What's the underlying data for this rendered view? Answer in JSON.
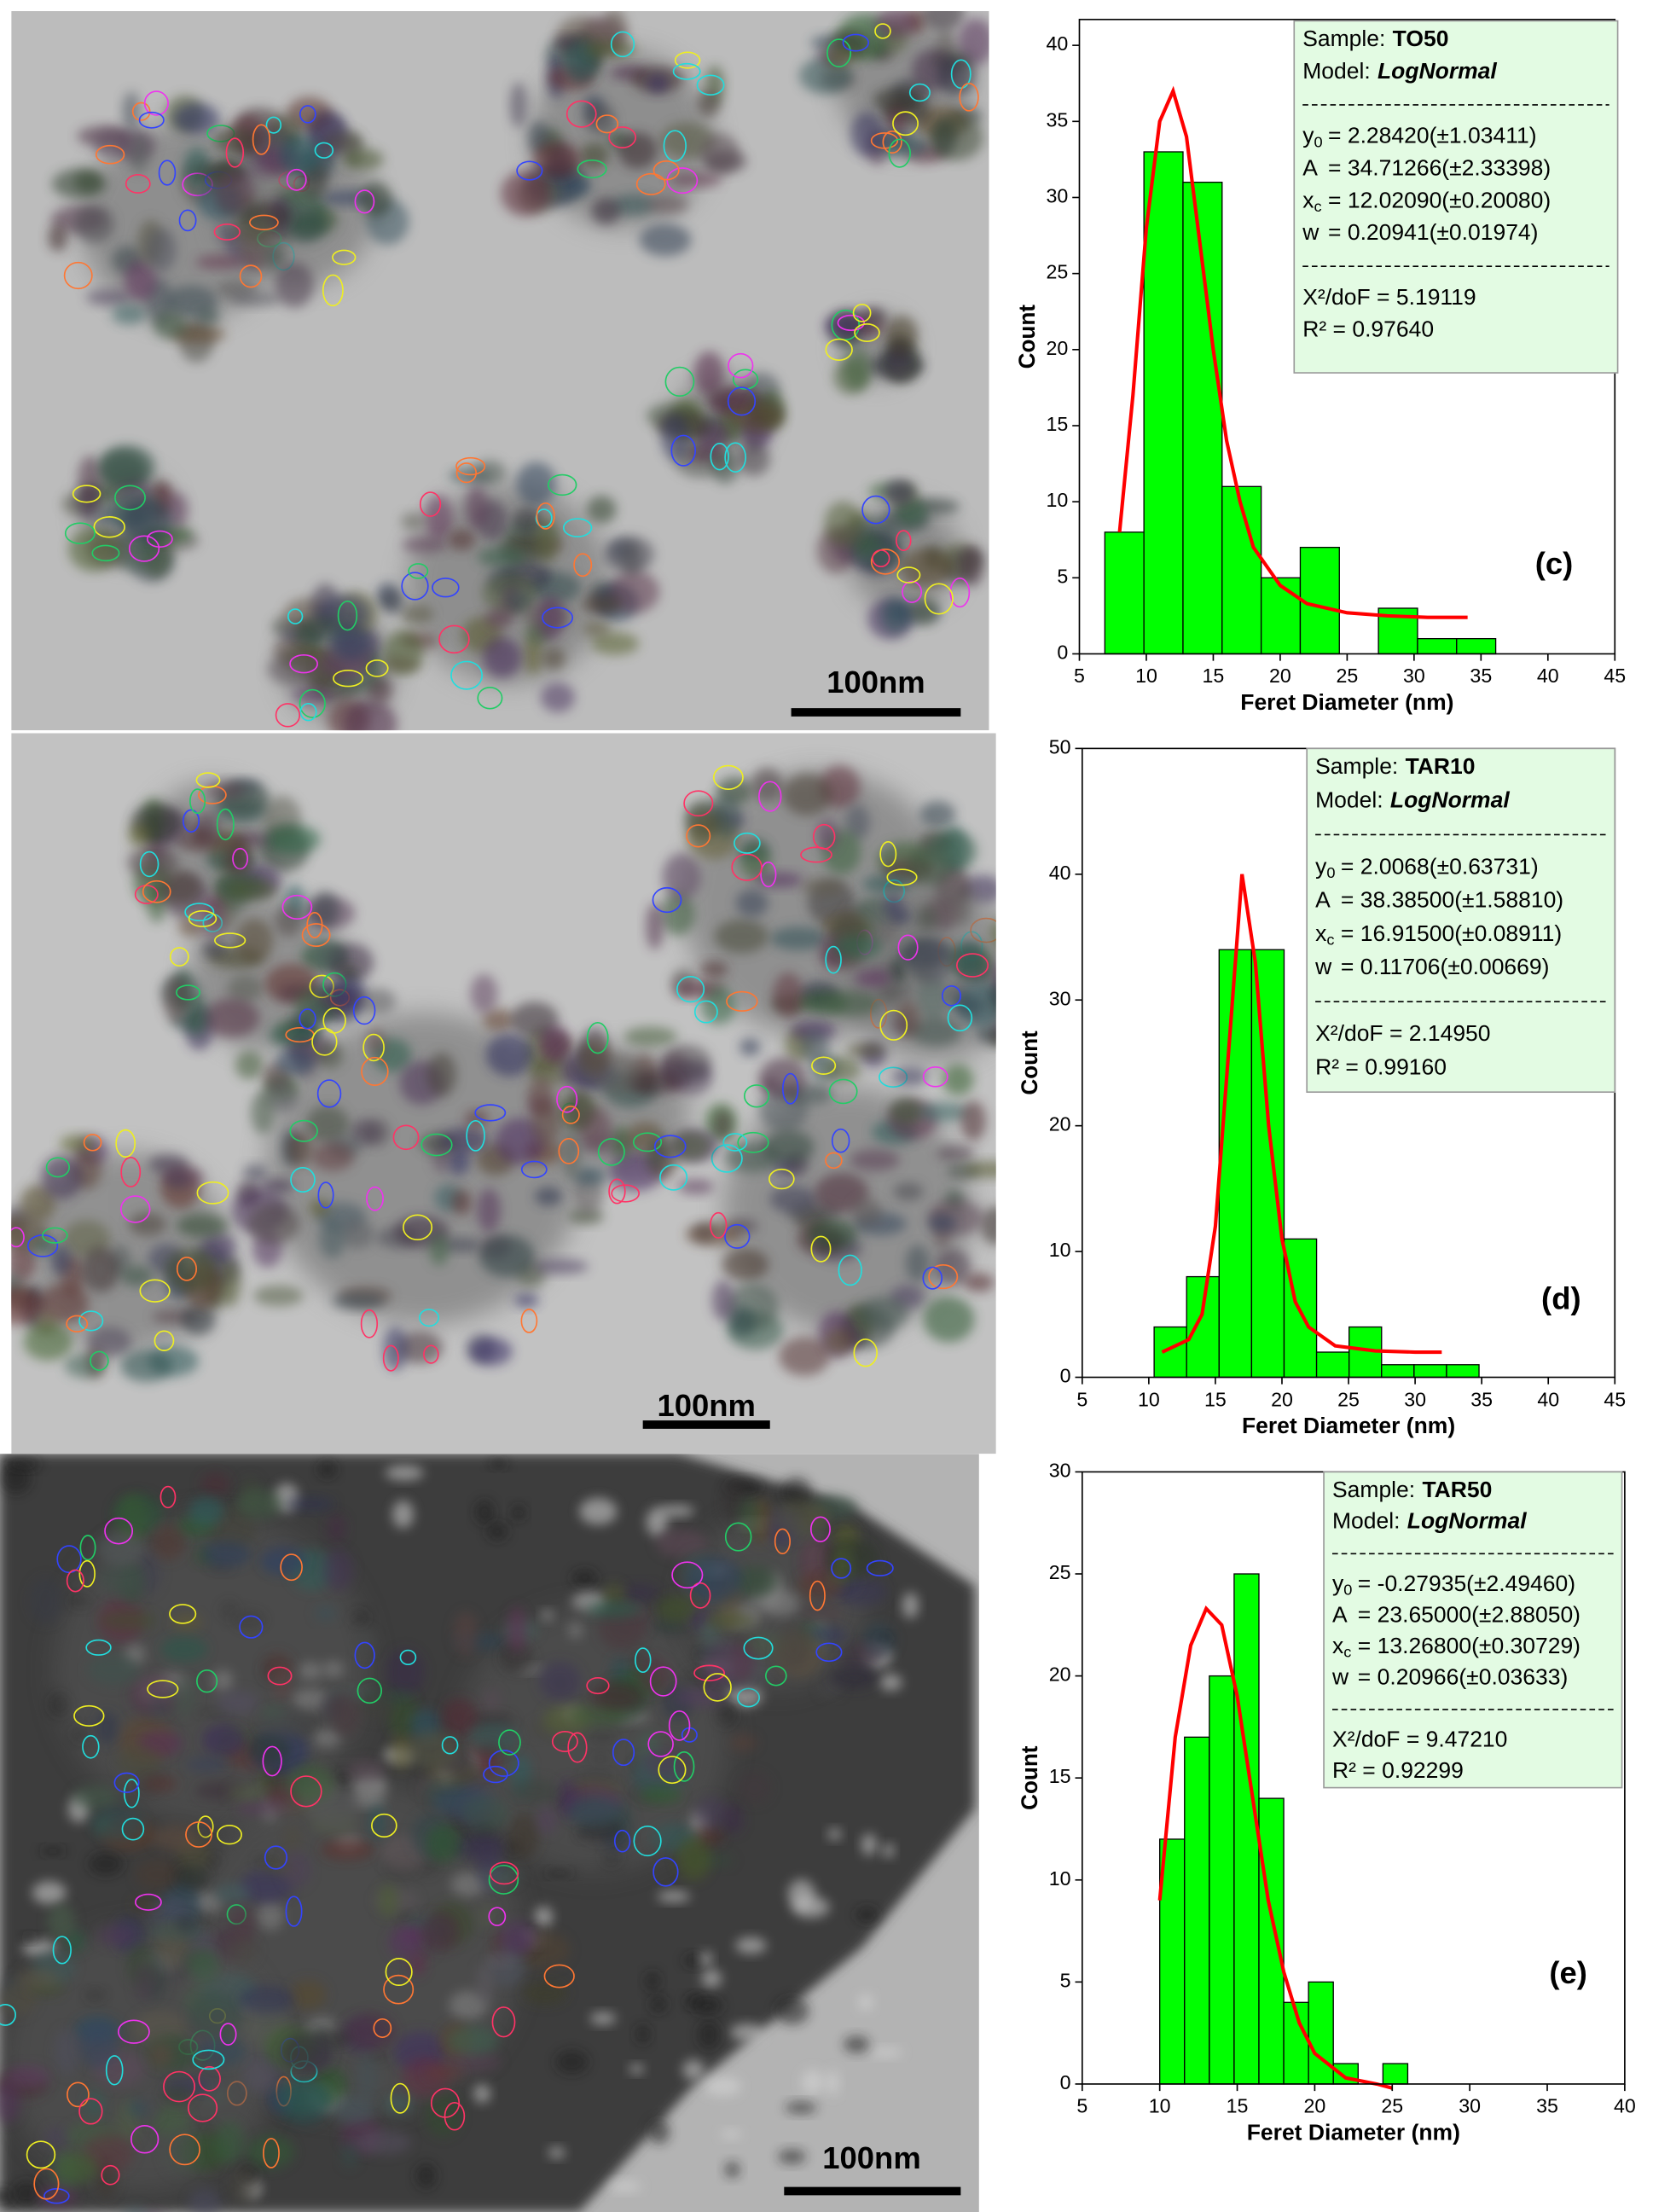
{
  "micrographs": [
    {
      "scale_bar": "100nm"
    },
    {
      "scale_bar": "100nm"
    },
    {
      "scale_bar": "100nm"
    }
  ],
  "chart_data": [
    {
      "type": "histogram",
      "panel_label": "(c)",
      "xlabel": "Feret Diameter (nm)",
      "ylabel": "Count",
      "bins": [
        6.9,
        9.82,
        12.74,
        15.66,
        18.58,
        21.5,
        24.42,
        27.34,
        30.26,
        33.18,
        36.1
      ],
      "values": [
        8,
        33,
        31,
        11,
        5,
        7,
        0,
        3,
        1,
        1
      ],
      "color": "#00ff00",
      "fit": {
        "x": [
          8,
          9,
          10,
          11,
          12,
          13,
          14,
          15,
          16,
          17,
          18,
          20,
          22,
          25,
          28,
          31,
          34
        ],
        "values": [
          8,
          17,
          28,
          35,
          37,
          34,
          27,
          20,
          14,
          10,
          7,
          4.5,
          3.3,
          2.7,
          2.5,
          2.4,
          2.4
        ],
        "color": "#ff0000"
      },
      "xlim": [
        5,
        45
      ],
      "xticks": [
        5,
        10,
        15,
        20,
        25,
        30,
        35,
        40,
        45
      ],
      "ylim": [
        0,
        41.7
      ],
      "yticks": [
        0,
        5,
        10,
        15,
        20,
        25,
        30,
        35,
        40
      ],
      "legend": {
        "sample_label": "Sample:",
        "sample": "TO50",
        "model_label": "Model:",
        "model": "LogNormal",
        "params": [
          {
            "name": "y",
            "sub": "0",
            "value": "= 2.28420(±1.03411)"
          },
          {
            "name": "A",
            "value": "= 34.71266(±2.33398)"
          },
          {
            "name": "x",
            "sub": "c",
            "value": "= 12.02090(±0.20080)"
          },
          {
            "name": "w",
            "value": "= 0.20941(±0.01974)"
          }
        ],
        "stats": [
          "X²/doF = 5.19119",
          "R² = 0.97640"
        ]
      }
    },
    {
      "type": "histogram",
      "panel_label": "(d)",
      "xlabel": "Feret Diameter (nm)",
      "ylabel": "Count",
      "bins": [
        10.4,
        12.84,
        15.28,
        17.72,
        20.16,
        22.6,
        25.04,
        27.48,
        29.92,
        32.36,
        34.8
      ],
      "values": [
        4,
        8,
        34,
        34,
        11,
        2,
        4,
        1,
        1,
        1
      ],
      "color": "#00ff00",
      "fit": {
        "x": [
          11,
          13,
          14,
          15,
          16,
          17,
          18,
          19,
          20,
          21,
          22,
          24,
          27,
          30,
          32
        ],
        "values": [
          2,
          3,
          5,
          12,
          26,
          40,
          33,
          20,
          11,
          6,
          4,
          2.5,
          2.1,
          2,
          2
        ],
        "color": "#ff0000"
      },
      "xlim": [
        5,
        45
      ],
      "xticks": [
        5,
        10,
        15,
        20,
        25,
        30,
        35,
        40,
        45
      ],
      "ylim": [
        0,
        50
      ],
      "yticks": [
        0,
        10,
        20,
        30,
        40,
        50
      ],
      "legend": {
        "sample_label": "Sample:",
        "sample": "TAR10",
        "model_label": "Model:",
        "model": "LogNormal",
        "params": [
          {
            "name": "y",
            "sub": "0",
            "value": "= 2.0068(±0.63731)"
          },
          {
            "name": "A",
            "value": "= 38.38500(±1.58810)"
          },
          {
            "name": "x",
            "sub": "c",
            "value": "= 16.91500(±0.08911)"
          },
          {
            "name": "w",
            "value": "= 0.11706(±0.00669)"
          }
        ],
        "stats": [
          "X²/doF = 2.14950",
          "R² = 0.99160"
        ]
      }
    },
    {
      "type": "histogram",
      "panel_label": "(e)",
      "xlabel": "Feret Diameter (nm)",
      "ylabel": "Count",
      "bins": [
        10,
        11.6,
        13.2,
        14.8,
        16.4,
        18,
        19.6,
        21.2,
        22.8,
        24.4,
        26
      ],
      "values": [
        12,
        17,
        20,
        25,
        14,
        4,
        5,
        1,
        0,
        1
      ],
      "color": "#00ff00",
      "fit": {
        "x": [
          10,
          11,
          12,
          13,
          14,
          15,
          16,
          17,
          18,
          19,
          20,
          22,
          24,
          25
        ],
        "values": [
          9,
          17,
          21.5,
          23.3,
          22.5,
          19,
          14,
          9,
          5.5,
          3,
          1.5,
          0.3,
          0,
          -0.2
        ],
        "color": "#ff0000"
      },
      "xlim": [
        5,
        40
      ],
      "xticks": [
        5,
        10,
        15,
        20,
        25,
        30,
        35,
        40
      ],
      "ylim": [
        0,
        30
      ],
      "yticks": [
        0,
        5,
        10,
        15,
        20,
        25,
        30
      ],
      "legend": {
        "sample_label": "Sample:",
        "sample": "TAR50",
        "model_label": "Model:",
        "model": "LogNormal",
        "params": [
          {
            "name": "y",
            "sub": "0",
            "value": "= -0.27935(±2.49460)"
          },
          {
            "name": "A",
            "value": "= 23.65000(±2.88050)"
          },
          {
            "name": "x",
            "sub": "c",
            "value": "= 13.26800(±0.30729)"
          },
          {
            "name": "w",
            "value": "= 0.20966(±0.03633)"
          }
        ],
        "stats": [
          "X²/doF = 9.47210",
          "R² = 0.92299"
        ]
      }
    }
  ]
}
